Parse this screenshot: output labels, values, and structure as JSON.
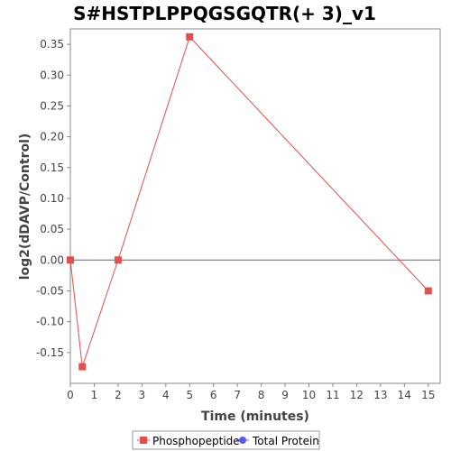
{
  "chart_data": {
    "type": "line",
    "title": "S#HSTPLPPQGSGQTR(+ 3)_v1",
    "xlabel": "Time (minutes)",
    "ylabel": "log2(dDAVP/Control)",
    "xlim": [
      0,
      15.5
    ],
    "ylim": [
      -0.2,
      0.375
    ],
    "x_ticks": [
      0,
      1,
      2,
      3,
      4,
      5,
      6,
      7,
      8,
      9,
      10,
      11,
      12,
      13,
      14,
      15
    ],
    "y_ticks": [
      -0.15,
      -0.1,
      -0.05,
      0.0,
      0.05,
      0.1,
      0.15,
      0.2,
      0.25,
      0.3,
      0.35
    ],
    "y_tick_labels": [
      "-0.15",
      "-0.10",
      "-0.05",
      "0.00",
      "0.05",
      "0.10",
      "0.15",
      "0.20",
      "0.25",
      "0.30",
      "0.35"
    ],
    "grid": false,
    "zero_line": true,
    "legend_position": "bottom",
    "series": [
      {
        "name": "Phosphopeptide",
        "color": "#e05050",
        "marker": "square",
        "x": [
          0,
          0.5,
          2,
          5,
          15
        ],
        "y": [
          0.0,
          -0.173,
          0.0,
          0.362,
          -0.05
        ]
      },
      {
        "name": "Total Protein",
        "color": "#5a5ae6",
        "marker": "circle",
        "x": [],
        "y": []
      }
    ]
  }
}
